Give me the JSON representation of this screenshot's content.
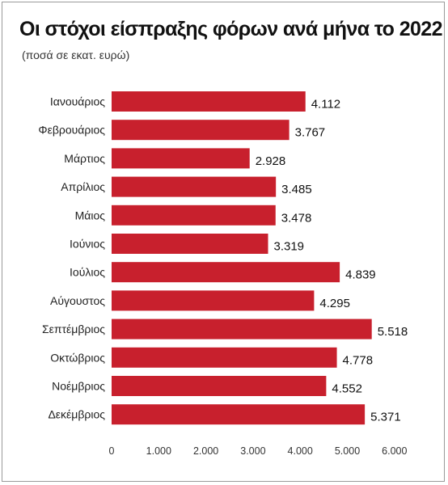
{
  "chart_data": {
    "type": "bar",
    "orientation": "horizontal",
    "title": "Οι στόχοι είσπραξης φόρων ανά μήνα το 2022",
    "subtitle": "(ποσά σε εκατ. ευρώ)",
    "categories": [
      "Ιανουάριος",
      "Φεβρουάριος",
      "Μάρτιος",
      "Απρίλιος",
      "Μάιος",
      "Ιούνιος",
      "Ιούλιος",
      "Αύγουστος",
      "Σεπτέμβριος",
      "Οκτώβριος",
      "Νοέμβριος",
      "Δεκέμβριος"
    ],
    "values": [
      4112,
      3767,
      2928,
      3485,
      3478,
      3319,
      4839,
      4295,
      5518,
      4778,
      4552,
      5371
    ],
    "value_labels": [
      "4.112",
      "3.767",
      "2.928",
      "3.485",
      "3.478",
      "3.319",
      "4.839",
      "4.295",
      "5.518",
      "4.778",
      "4.552",
      "5.371"
    ],
    "xlim": [
      0,
      6000
    ],
    "x_ticks": [
      0,
      1000,
      2000,
      3000,
      4000,
      5000,
      6000
    ],
    "x_tick_labels": [
      "0",
      "1.000",
      "2.000",
      "3.000",
      "4.000",
      "5.000",
      "6.000"
    ],
    "grid": false,
    "bar_color": "#c8202d"
  }
}
